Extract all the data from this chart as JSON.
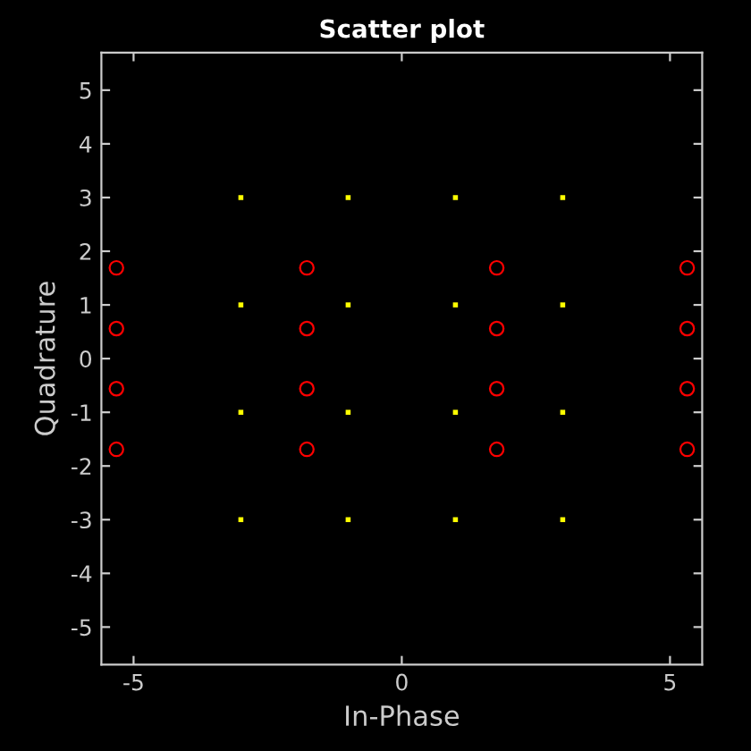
{
  "chart_data": {
    "type": "scatter",
    "title": "Scatter plot",
    "xlabel": "In-Phase",
    "ylabel": "Quadrature",
    "xlim": [
      -5.6,
      5.6
    ],
    "ylim": [
      -5.7,
      5.7
    ],
    "xticks": [
      -5,
      0,
      5
    ],
    "yticks": [
      -5,
      -4,
      -3,
      -2,
      -1,
      0,
      1,
      2,
      3,
      4,
      5
    ],
    "grid": false,
    "legend": false,
    "series": [
      {
        "color": "#ffff00",
        "marker": "square",
        "x": [
          -3,
          -3,
          -3,
          -3,
          -1,
          -1,
          -1,
          -1,
          1,
          1,
          1,
          1,
          3,
          3,
          3,
          3
        ],
        "values": [
          3,
          1,
          -1,
          -3,
          3,
          1,
          -1,
          -3,
          3,
          1,
          -1,
          -3,
          3,
          1,
          -1,
          -3
        ]
      },
      {
        "color": "#ff0000",
        "marker": "circle",
        "x": [
          -5.32,
          -5.32,
          -5.32,
          -5.32,
          -1.77,
          -1.77,
          -1.77,
          -1.77,
          1.77,
          1.77,
          1.77,
          1.77,
          5.32,
          5.32,
          5.32,
          5.32
        ],
        "values": [
          1.69,
          0.56,
          -0.56,
          -1.69,
          1.69,
          0.56,
          -0.56,
          -1.69,
          1.69,
          0.56,
          -0.56,
          -1.69,
          1.69,
          0.56,
          -0.56,
          -1.69
        ]
      }
    ]
  }
}
